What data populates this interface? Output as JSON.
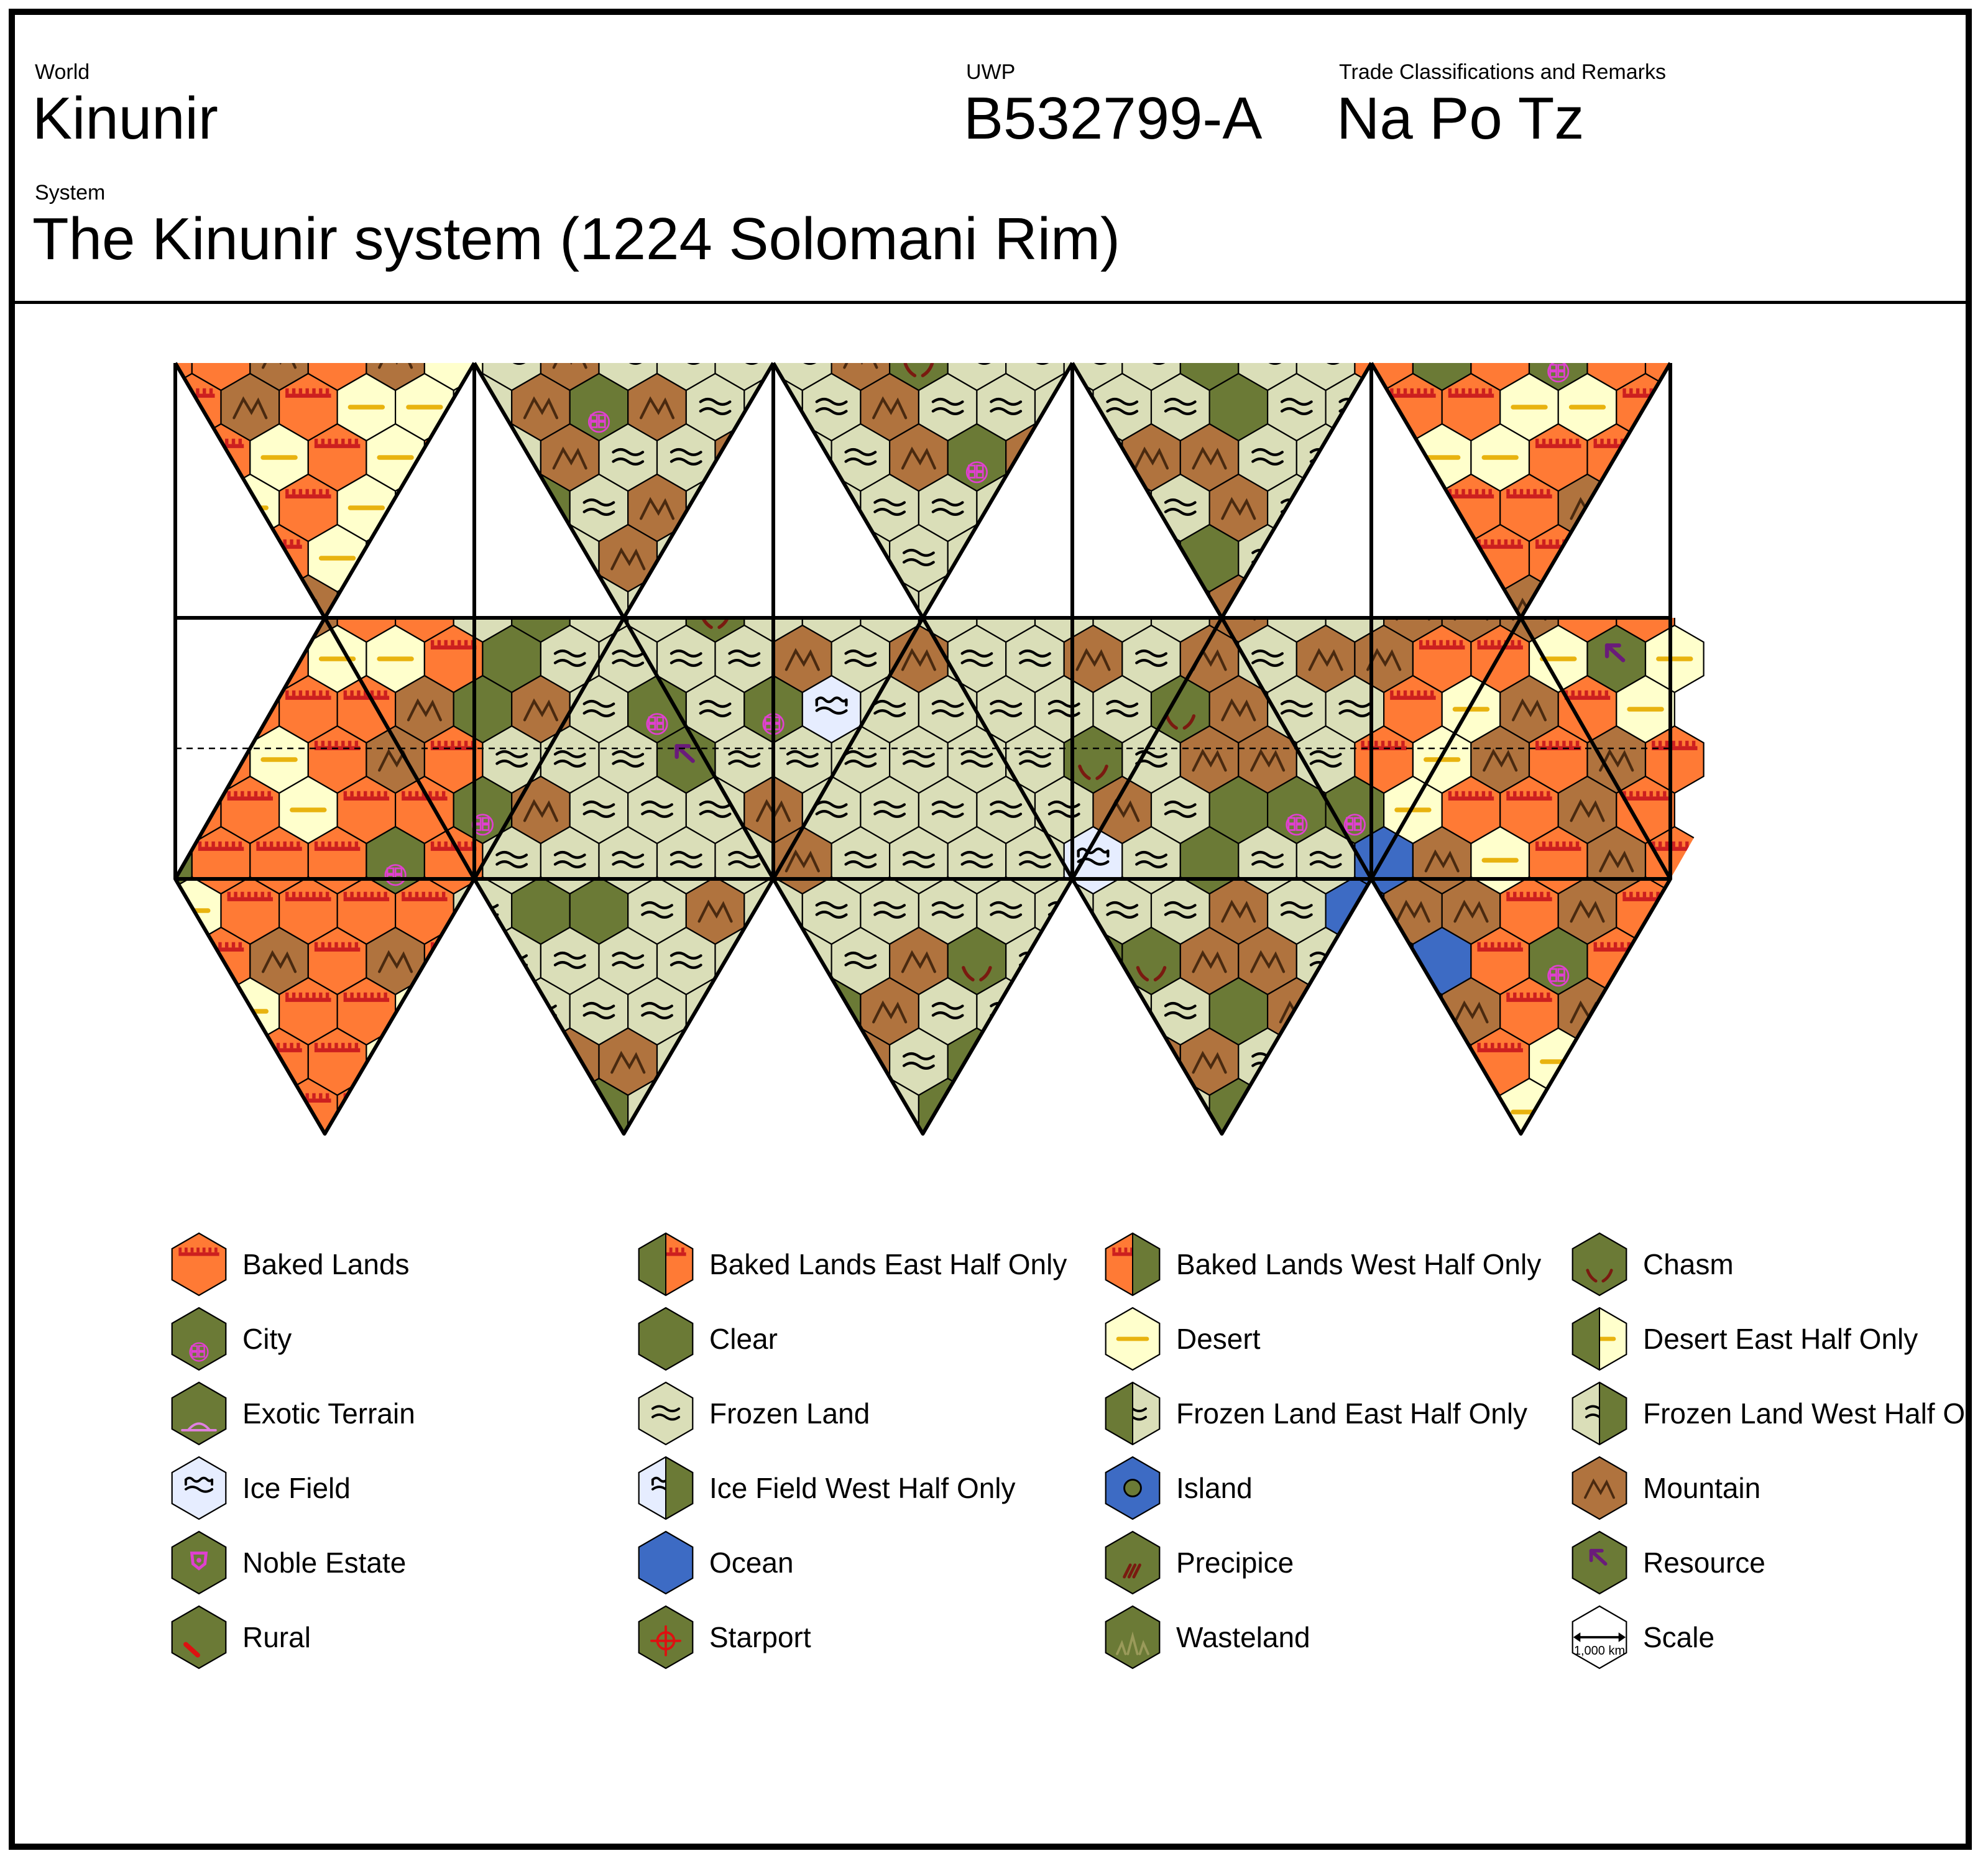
{
  "header": {
    "world_label": "World",
    "world_name": "Kinunir",
    "uwp_label": "UWP",
    "uwp_value": "B532799-A",
    "trade_label": "Trade Classifications and Remarks",
    "trade_value": "Na Po Tz",
    "system_label": "System",
    "system_value": "The Kinunir system (1224 Solomani Rim)"
  },
  "colors": {
    "baked": "#ff7a35",
    "clear": "#6b7a36",
    "desert": "#ffffcc",
    "frozen": "#dadeb8",
    "ice": "#e6edff",
    "ocean": "#3d6bc4",
    "mountain": "#b0733e",
    "outline": "#000000",
    "desert_line": "#e8b30f",
    "baked_line": "#cc1f1f",
    "city_symbol": "#e040d0",
    "resource_symbol": "#6a1b7a",
    "chasm_symbol": "#7a1a10",
    "starport_symbol": "#dd1111",
    "wasteland_symbol": "#9a9a5a",
    "exotic_symbol": "#e080e0"
  },
  "legend": [
    {
      "label": "Baked Lands",
      "icon": "baked-lands-icon"
    },
    {
      "label": "Baked Lands East Half Only",
      "icon": "baked-lands-east-icon"
    },
    {
      "label": "Baked Lands West Half Only",
      "icon": "baked-lands-west-icon"
    },
    {
      "label": "Chasm",
      "icon": "chasm-icon"
    },
    {
      "label": "City",
      "icon": "city-icon"
    },
    {
      "label": "Clear",
      "icon": "clear-icon"
    },
    {
      "label": "Desert",
      "icon": "desert-icon"
    },
    {
      "label": "Desert East Half Only",
      "icon": "desert-east-icon"
    },
    {
      "label": "Exotic Terrain",
      "icon": "exotic-terrain-icon"
    },
    {
      "label": "Frozen Land",
      "icon": "frozen-land-icon"
    },
    {
      "label": "Frozen Land East Half Only",
      "icon": "frozen-land-east-icon"
    },
    {
      "label": "Frozen Land West Half Only",
      "icon": "frozen-land-west-icon"
    },
    {
      "label": "Ice Field",
      "icon": "ice-field-icon"
    },
    {
      "label": "Ice Field West Half Only",
      "icon": "ice-field-west-icon"
    },
    {
      "label": "Island",
      "icon": "island-icon"
    },
    {
      "label": "Mountain",
      "icon": "mountain-icon"
    },
    {
      "label": "Noble Estate",
      "icon": "noble-estate-icon"
    },
    {
      "label": "Ocean",
      "icon": "ocean-icon"
    },
    {
      "label": "Precipice",
      "icon": "precipice-icon"
    },
    {
      "label": "Resource",
      "icon": "resource-icon"
    },
    {
      "label": "Rural",
      "icon": "rural-icon"
    },
    {
      "label": "Starport",
      "icon": "starport-icon"
    },
    {
      "label": "Wasteland",
      "icon": "wasteland-icon"
    },
    {
      "label": "Scale",
      "icon": "scale-icon",
      "scale_text": "1,000 km"
    }
  ]
}
